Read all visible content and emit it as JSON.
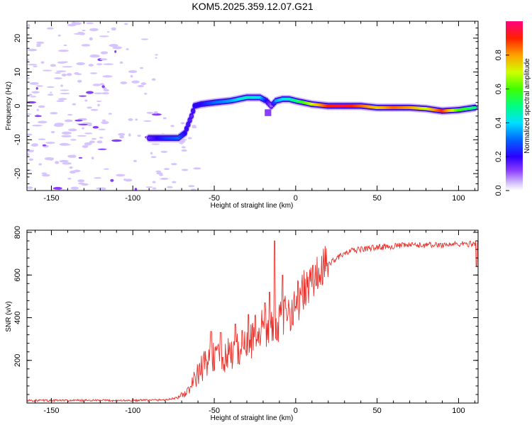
{
  "title": "KOM5.2025.359.12.07.G21",
  "chart_data": [
    {
      "type": "heatmap",
      "name": "spectrogram",
      "xlabel": "Height of straight line (km)",
      "ylabel": "Frequency (Hz)",
      "xlim": [
        -165,
        112
      ],
      "ylim": [
        -25,
        25
      ],
      "xticks": [
        -150,
        -100,
        -50,
        0,
        50,
        100
      ],
      "yticks": [
        -20,
        -10,
        0,
        10,
        20
      ],
      "colorbar": {
        "label": "Normalized spectral amplitude",
        "range": [
          0,
          1
        ],
        "ticks": [
          0.0,
          0.2,
          0.4,
          0.6,
          0.8
        ]
      },
      "trace": {
        "x": [
          -90,
          -80,
          -72,
          -68,
          -64,
          -62,
          -58,
          -50,
          -40,
          -30,
          -22,
          -18,
          -15,
          -12,
          -8,
          -4,
          0,
          10,
          20,
          30,
          40,
          50,
          60,
          70,
          80,
          90,
          100,
          110
        ],
        "y": [
          -9.5,
          -9.5,
          -9.5,
          -8,
          -3,
          0,
          0.5,
          1,
          1.5,
          2.5,
          2.5,
          1.5,
          0,
          1.5,
          2,
          2,
          1.5,
          0.5,
          0,
          0,
          0,
          -0.5,
          -0.5,
          -0.5,
          -0.8,
          -1.5,
          -1.2,
          -0.5
        ],
        "amplitude": [
          0.15,
          0.25,
          0.3,
          0.2,
          0.15,
          0.2,
          0.2,
          0.3,
          0.35,
          0.45,
          0.4,
          0.2,
          0.1,
          0.35,
          0.4,
          0.45,
          0.5,
          0.7,
          0.9,
          0.95,
          0.85,
          0.75,
          0.85,
          0.8,
          0.7,
          0.9,
          0.6,
          0.5
        ]
      },
      "noise_region_x": [
        -165,
        -85
      ]
    },
    {
      "type": "line",
      "name": "snr",
      "xlabel": "Height of straight line (km)",
      "ylabel": "SNR (v/v)",
      "xlim": [
        -165,
        112
      ],
      "ylim": [
        0,
        810
      ],
      "xticks": [
        -150,
        -100,
        -50,
        0,
        50,
        100
      ],
      "yticks": [
        200,
        400,
        600,
        800
      ],
      "color": "#e8302a",
      "anchors": {
        "x": [
          -165,
          -100,
          -80,
          -72,
          -66,
          -62,
          -58,
          -54,
          -50,
          -45,
          -40,
          -35,
          -30,
          -25,
          -20,
          -15,
          -10,
          -5,
          0,
          5,
          10,
          15,
          20,
          25,
          30,
          35,
          40,
          50,
          60,
          70,
          80,
          90,
          100,
          105,
          110,
          112
        ],
        "y": [
          12,
          12,
          15,
          25,
          55,
          110,
          160,
          200,
          220,
          190,
          240,
          250,
          260,
          330,
          350,
          360,
          380,
          420,
          470,
          520,
          570,
          610,
          650,
          680,
          700,
          715,
          720,
          730,
          735,
          740,
          740,
          742,
          745,
          745,
          748,
          760
        ]
      },
      "spikes": [
        {
          "x": -13,
          "y": 760
        },
        {
          "x": -8,
          "y": 600
        },
        {
          "x": -16,
          "y": 520
        },
        {
          "x": -33,
          "y": 340
        },
        {
          "x": -37,
          "y": 370
        },
        {
          "x": -46,
          "y": 330
        },
        {
          "x": -52,
          "y": 335
        },
        {
          "x": -29,
          "y": 415
        },
        {
          "x": -19,
          "y": 470
        },
        {
          "x": 111,
          "y": 640
        }
      ]
    }
  ]
}
